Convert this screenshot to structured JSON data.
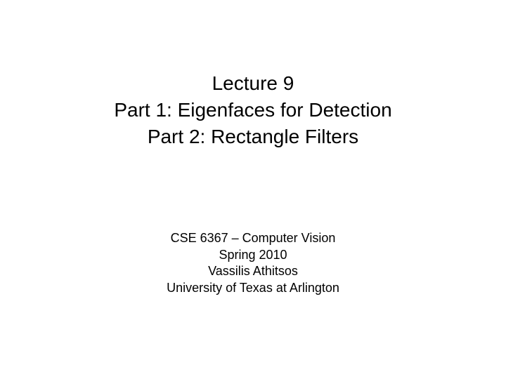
{
  "title": {
    "line1": "Lecture 9",
    "line2": "Part 1: Eigenfaces for Detection",
    "line3": "Part 2: Rectangle Filters",
    "fontsize": 28,
    "color": "#000000"
  },
  "subtitle": {
    "line1": "CSE 6367 – Computer Vision",
    "line2": "Spring 2010",
    "line3": "Vassilis Athitsos",
    "line4": "University of Texas at Arlington",
    "fontsize": 18,
    "color": "#000000"
  },
  "background_color": "#ffffff",
  "slide_width": 720,
  "slide_height": 540
}
